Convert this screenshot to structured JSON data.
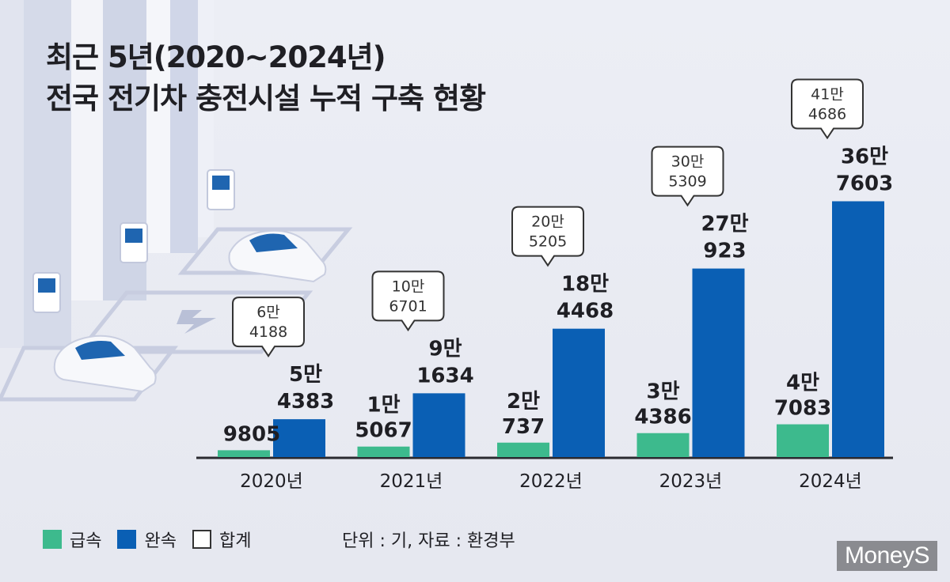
{
  "title_line1": "최근 5년(2020~2024년)",
  "title_line2": "전국 전기차 충전시설 누적 구축 현황",
  "legend": {
    "fast": "급속",
    "slow": "완속",
    "total": "합계"
  },
  "source_note": "단위 : 기, 자료 : 환경부",
  "logo": "MoneyS",
  "colors": {
    "fast": "#3dba8d",
    "slow": "#0a5fb4",
    "total_box": "#ffffff"
  },
  "chart_data": {
    "type": "bar",
    "categories": [
      "2020년",
      "2021년",
      "2022년",
      "2023년",
      "2024년"
    ],
    "series": [
      {
        "name": "급속",
        "values": [
          9805,
          15067,
          20737,
          34386,
          47083
        ]
      },
      {
        "name": "완속",
        "values": [
          54383,
          91634,
          184468,
          270923,
          367603
        ]
      },
      {
        "name": "합계",
        "values": [
          64188,
          106701,
          205205,
          305309,
          414686
        ]
      }
    ],
    "value_labels": {
      "fast": [
        [
          "9805"
        ],
        [
          "1만",
          "5067"
        ],
        [
          "2만",
          "737"
        ],
        [
          "3만",
          "4386"
        ],
        [
          "4만",
          "7083"
        ]
      ],
      "slow": [
        [
          "5만",
          "4383"
        ],
        [
          "9만",
          "1634"
        ],
        [
          "18만",
          "4468"
        ],
        [
          "27만",
          "923"
        ],
        [
          "36만",
          "7603"
        ]
      ],
      "total": [
        [
          "6만",
          "4188"
        ],
        [
          "10만",
          "6701"
        ],
        [
          "20만",
          "5205"
        ],
        [
          "30만",
          "5309"
        ],
        [
          "41만",
          "4686"
        ]
      ]
    },
    "ylim": [
      0,
      400000
    ],
    "grid": false,
    "legend_position": "bottom-left"
  }
}
